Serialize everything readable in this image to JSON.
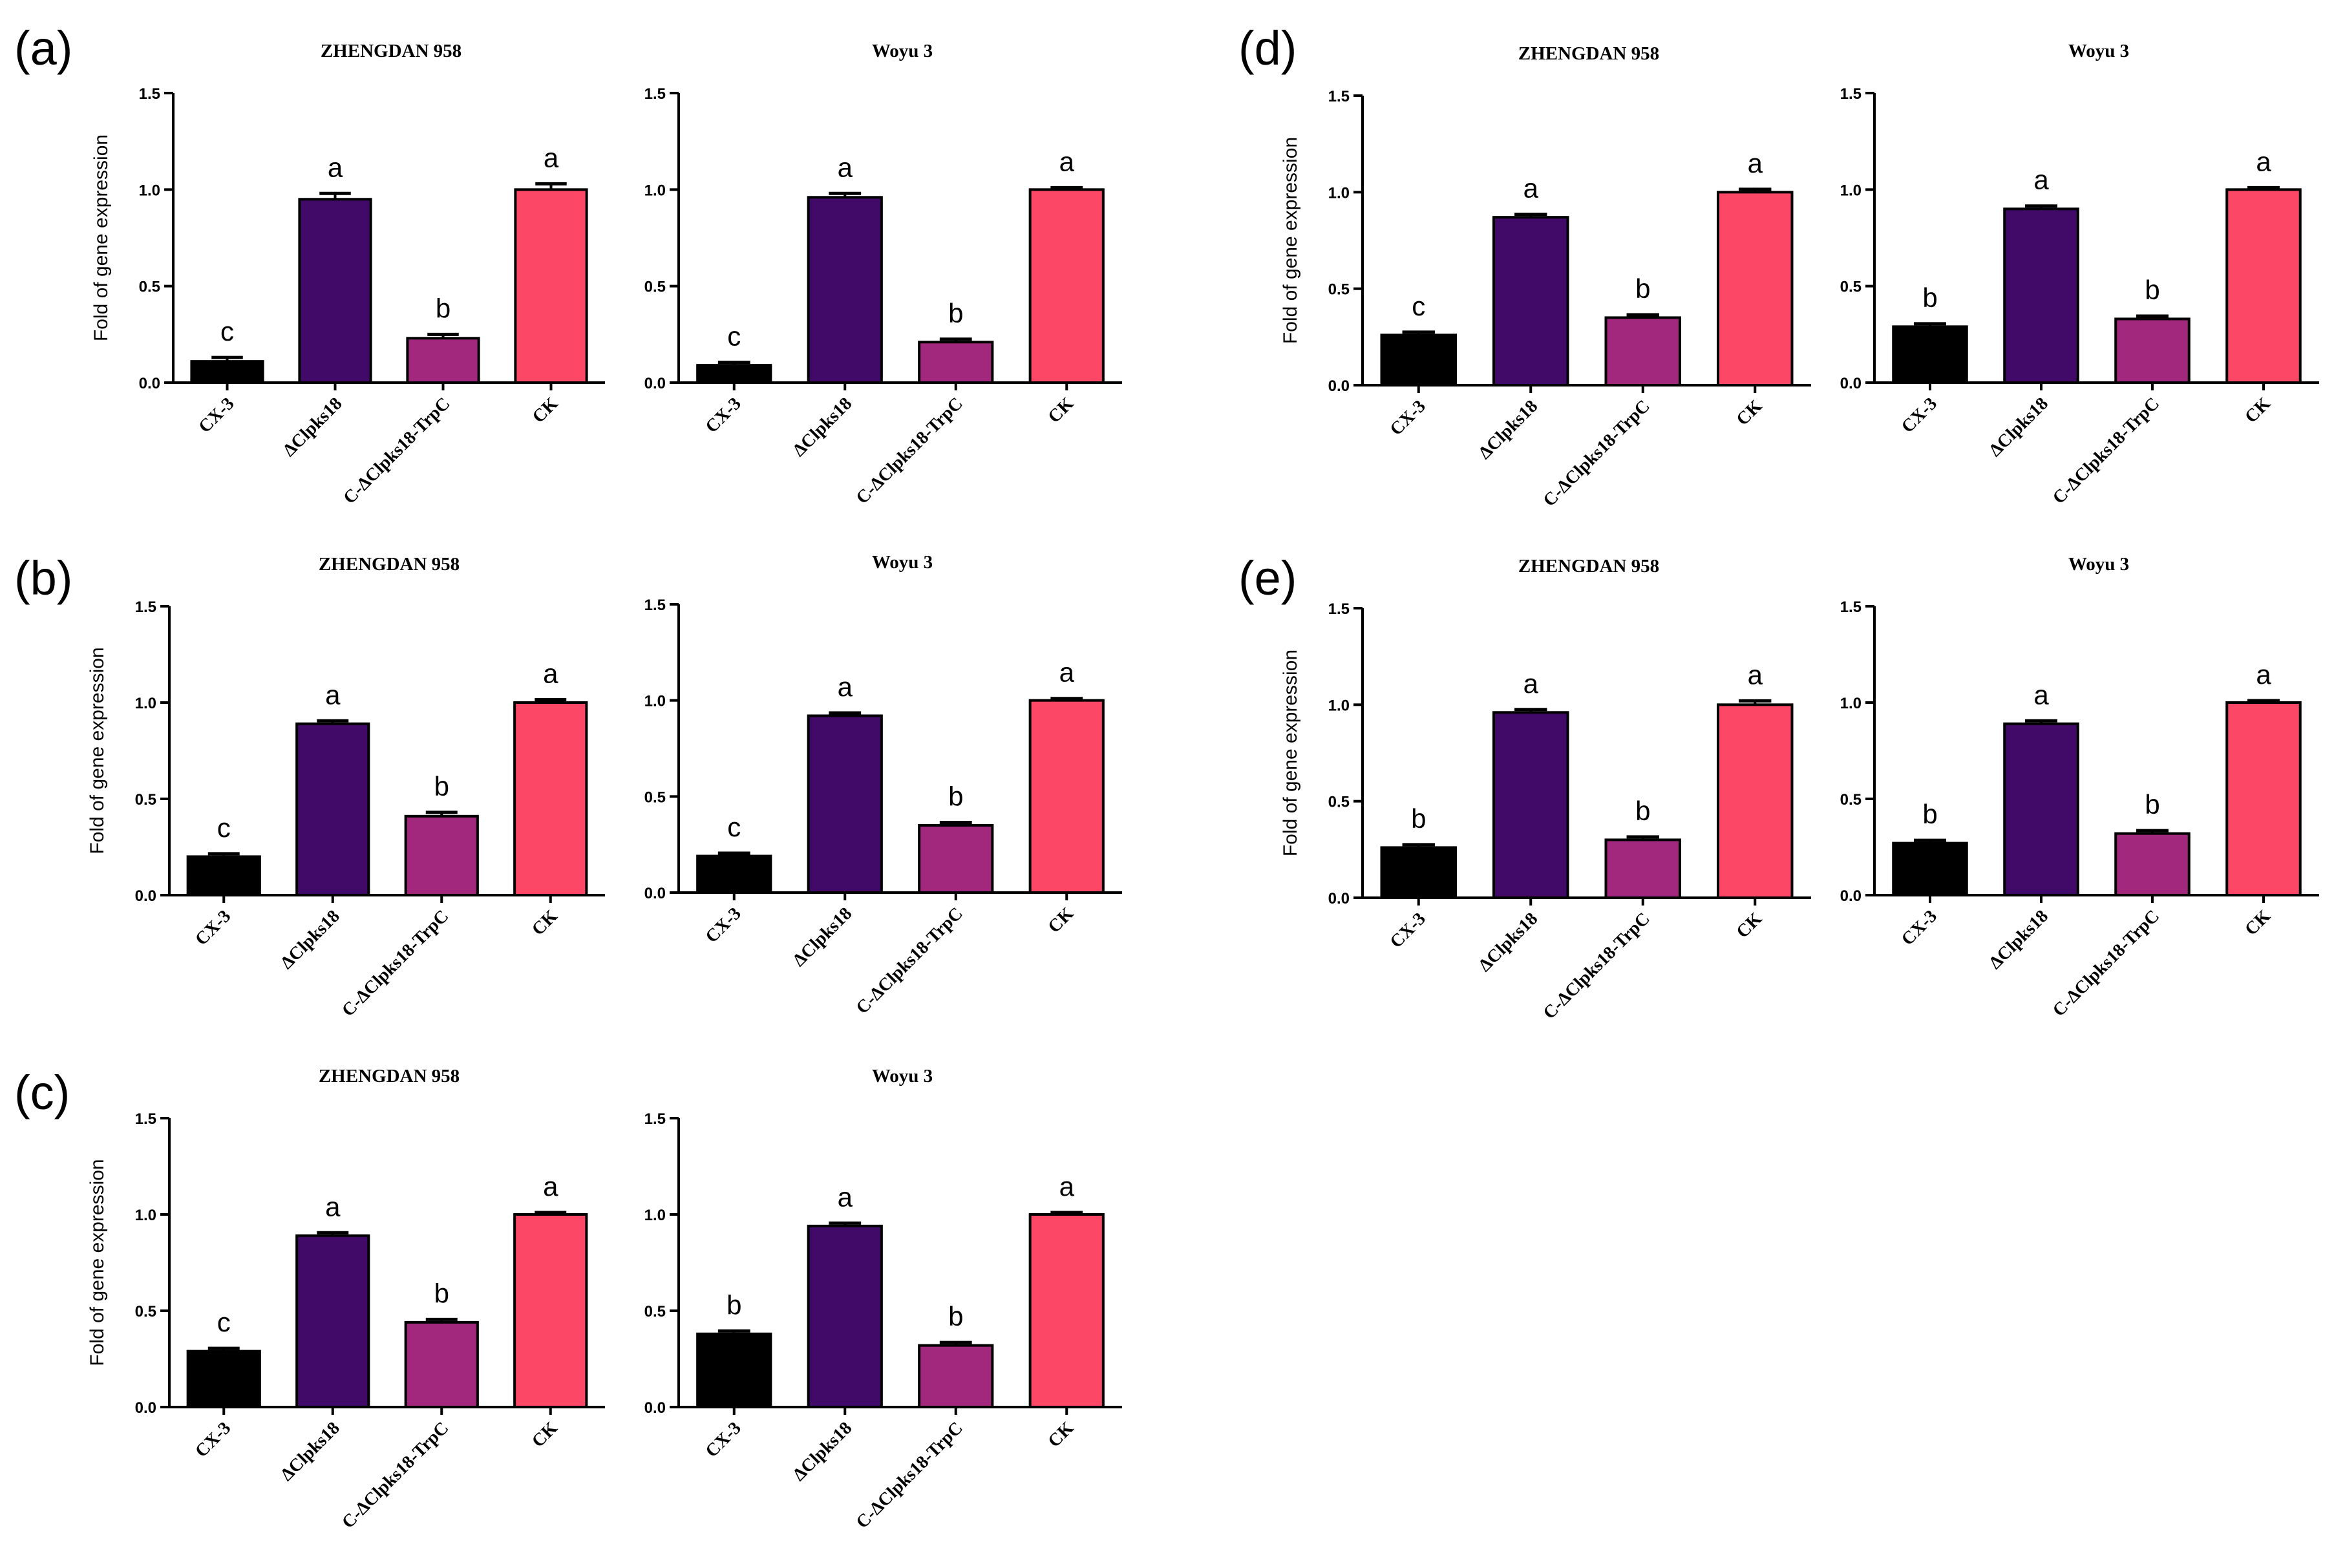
{
  "figure": {
    "colors": {
      "CX-3": "#000000",
      "ΔClpks18": "#420a68",
      "C-ΔClpks18-TrpC": "#a2287d",
      "CK": "#fc4866"
    }
  },
  "chart_data": [
    {
      "panel": "(a)",
      "title": "ZHENGDAN 958",
      "type": "bar",
      "categories": [
        "CX-3",
        "ΔClpks18",
        "C-ΔClpks18-TrpC",
        "CK"
      ],
      "values": [
        0.11,
        0.95,
        0.23,
        1.0
      ],
      "errors": [
        0.02,
        0.03,
        0.02,
        0.03
      ],
      "significance": [
        "c",
        "a",
        "b",
        "a"
      ],
      "ylabel": "Fold of gene expression",
      "ylim": [
        0,
        1.5
      ],
      "yticks": [
        "0.0",
        "0.5",
        "1.0",
        "1.5"
      ]
    },
    {
      "panel": "",
      "title": "Woyu 3",
      "type": "bar",
      "categories": [
        "CX-3",
        "ΔClpks18",
        "C-ΔClpks18-TrpC",
        "CK"
      ],
      "values": [
        0.09,
        0.96,
        0.21,
        1.0
      ],
      "errors": [
        0.015,
        0.02,
        0.015,
        0.01
      ],
      "significance": [
        "c",
        "a",
        "b",
        "a"
      ],
      "ylabel": "",
      "ylim": [
        0,
        1.5
      ],
      "yticks": [
        "0.0",
        "0.5",
        "1.0",
        "1.5"
      ]
    },
    {
      "panel": "(b)",
      "title": "ZHENGDAN 958",
      "type": "bar",
      "categories": [
        "CX-3",
        "ΔClpks18",
        "C-ΔClpks18-TrpC",
        "CK"
      ],
      "values": [
        0.2,
        0.89,
        0.41,
        1.0
      ],
      "errors": [
        0.015,
        0.015,
        0.02,
        0.015
      ],
      "significance": [
        "c",
        "a",
        "b",
        "a"
      ],
      "ylabel": "Fold of gene expression",
      "ylim": [
        0,
        1.5
      ],
      "yticks": [
        "0.0",
        "0.5",
        "1.0",
        "1.5"
      ]
    },
    {
      "panel": "",
      "title": "Woyu 3",
      "type": "bar",
      "categories": [
        "CX-3",
        "ΔClpks18",
        "C-ΔClpks18-TrpC",
        "CK"
      ],
      "values": [
        0.19,
        0.92,
        0.35,
        1.0
      ],
      "errors": [
        0.015,
        0.015,
        0.015,
        0.01
      ],
      "significance": [
        "c",
        "a",
        "b",
        "a"
      ],
      "ylabel": "",
      "ylim": [
        0,
        1.5
      ],
      "yticks": [
        "0.0",
        "0.5",
        "1.0",
        "1.5"
      ]
    },
    {
      "panel": "(c)",
      "title": "ZHENGDAN 958",
      "type": "bar",
      "categories": [
        "CX-3",
        "ΔClpks18",
        "C-ΔClpks18-TrpC",
        "CK"
      ],
      "values": [
        0.29,
        0.89,
        0.44,
        1.0
      ],
      "errors": [
        0.015,
        0.015,
        0.015,
        0.01
      ],
      "significance": [
        "c",
        "a",
        "b",
        "a"
      ],
      "ylabel": "Fold of gene expression",
      "ylim": [
        0,
        1.5
      ],
      "yticks": [
        "0.0",
        "0.5",
        "1.0",
        "1.5"
      ]
    },
    {
      "panel": "",
      "title": "Woyu 3",
      "type": "bar",
      "categories": [
        "CX-3",
        "ΔClpks18",
        "C-ΔClpks18-TrpC",
        "CK"
      ],
      "values": [
        0.38,
        0.94,
        0.32,
        1.0
      ],
      "errors": [
        0.015,
        0.015,
        0.015,
        0.01
      ],
      "significance": [
        "b",
        "a",
        "b",
        "a"
      ],
      "ylabel": "",
      "ylim": [
        0,
        1.5
      ],
      "yticks": [
        "0.0",
        "0.5",
        "1.0",
        "1.5"
      ]
    },
    {
      "panel": "(d)",
      "title": "ZHENGDAN 958",
      "type": "bar",
      "categories": [
        "CX-3",
        "ΔClpks18",
        "C-ΔClpks18-TrpC",
        "CK"
      ],
      "values": [
        0.26,
        0.87,
        0.35,
        1.0
      ],
      "errors": [
        0.015,
        0.015,
        0.015,
        0.015
      ],
      "significance": [
        "c",
        "a",
        "b",
        "a"
      ],
      "ylabel": "Fold of gene expression",
      "ylim": [
        0,
        1.5
      ],
      "yticks": [
        "0.0",
        "0.5",
        "1.0",
        "1.5"
      ]
    },
    {
      "panel": "",
      "title": "Woyu 3",
      "type": "bar",
      "categories": [
        "CX-3",
        "ΔClpks18",
        "C-ΔClpks18-TrpC",
        "CK"
      ],
      "values": [
        0.29,
        0.9,
        0.33,
        1.0
      ],
      "errors": [
        0.015,
        0.015,
        0.015,
        0.01
      ],
      "significance": [
        "b",
        "a",
        "b",
        "a"
      ],
      "ylabel": "",
      "ylim": [
        0,
        1.5
      ],
      "yticks": [
        "0.0",
        "0.5",
        "1.0",
        "1.5"
      ]
    },
    {
      "panel": "(e)",
      "title": "ZHENGDAN 958",
      "type": "bar",
      "categories": [
        "CX-3",
        "ΔClpks18",
        "C-ΔClpks18-TrpC",
        "CK"
      ],
      "values": [
        0.26,
        0.96,
        0.3,
        1.0
      ],
      "errors": [
        0.015,
        0.015,
        0.015,
        0.02
      ],
      "significance": [
        "b",
        "a",
        "b",
        "a"
      ],
      "ylabel": "Fold of gene expression",
      "ylim": [
        0,
        1.5
      ],
      "yticks": [
        "0.0",
        "0.5",
        "1.0",
        "1.5"
      ]
    },
    {
      "panel": "",
      "title": "Woyu 3",
      "type": "bar",
      "categories": [
        "CX-3",
        "ΔClpks18",
        "C-ΔClpks18-TrpC",
        "CK"
      ],
      "values": [
        0.27,
        0.89,
        0.32,
        1.0
      ],
      "errors": [
        0.015,
        0.015,
        0.015,
        0.01
      ],
      "significance": [
        "b",
        "a",
        "b",
        "a"
      ],
      "ylabel": "",
      "ylim": [
        0,
        1.5
      ],
      "yticks": [
        "0.0",
        "0.5",
        "1.0",
        "1.5"
      ]
    }
  ]
}
